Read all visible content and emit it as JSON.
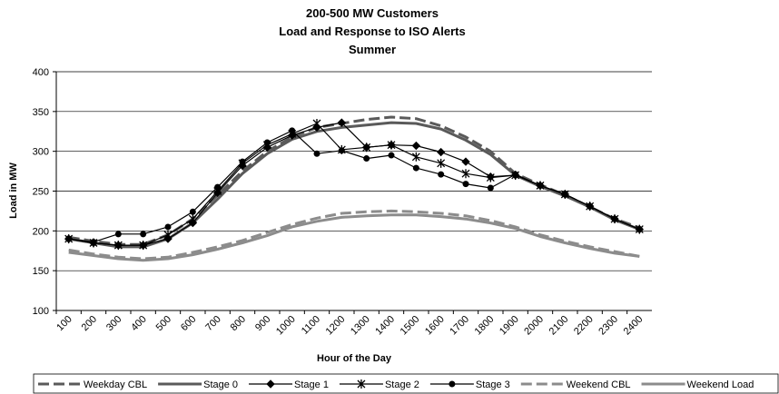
{
  "chart_data": {
    "type": "line",
    "title": [
      "200-500 MW Customers",
      "Load and Response to ISO Alerts",
      "Summer"
    ],
    "x_label": "Hour of the Day",
    "y_label": "Load in MW",
    "categories": [
      "100",
      "200",
      "300",
      "400",
      "500",
      "600",
      "700",
      "800",
      "900",
      "1000",
      "1100",
      "1200",
      "1300",
      "1400",
      "1500",
      "1600",
      "1700",
      "1800",
      "1900",
      "2000",
      "2100",
      "2200",
      "2300",
      "2400"
    ],
    "ylim": [
      100,
      400
    ],
    "yticks": [
      100,
      150,
      200,
      250,
      300,
      350,
      400
    ],
    "grid": true,
    "legend": "bottom",
    "series": [
      {
        "name": "Weekday CBL",
        "color": "#5a5a5a",
        "width": 3,
        "dash": true,
        "marker": null,
        "values": [
          192,
          187,
          183,
          183,
          195,
          215,
          245,
          275,
          300,
          318,
          330,
          335,
          340,
          343,
          341,
          332,
          318,
          300,
          272,
          258,
          245,
          230,
          215,
          204
        ]
      },
      {
        "name": "Stage 0",
        "color": "#5a5a5a",
        "width": 3,
        "dash": false,
        "marker": null,
        "values": [
          190,
          185,
          180,
          180,
          190,
          210,
          240,
          272,
          297,
          315,
          325,
          330,
          333,
          336,
          335,
          328,
          314,
          296,
          270,
          256,
          244,
          230,
          214,
          202
        ]
      },
      {
        "name": "Stage 1",
        "color": "#000000",
        "width": 1.2,
        "dash": false,
        "marker": "diamond",
        "values": [
          190,
          185,
          182,
          182,
          190,
          210,
          248,
          282,
          305,
          320,
          330,
          336,
          305,
          308,
          307,
          299,
          287,
          268,
          270,
          257,
          246,
          231,
          215,
          202
        ]
      },
      {
        "name": "Stage 2",
        "color": "#000000",
        "width": 1.2,
        "dash": false,
        "marker": "asterisk",
        "values": [
          190,
          185,
          182,
          182,
          195,
          215,
          250,
          285,
          308,
          322,
          335,
          302,
          305,
          308,
          293,
          285,
          272,
          267,
          270,
          257,
          246,
          231,
          215,
          202
        ]
      },
      {
        "name": "Stage 3",
        "color": "#000000",
        "width": 1.2,
        "dash": false,
        "marker": "circle",
        "values": [
          190,
          186,
          196,
          196,
          205,
          224,
          255,
          287,
          311,
          326,
          297,
          301,
          291,
          295,
          279,
          271,
          259,
          254,
          271,
          257,
          246,
          231,
          215,
          202
        ]
      },
      {
        "name": "Weekend CBL",
        "color": "#8c8c8c",
        "width": 3,
        "dash": true,
        "marker": null,
        "values": [
          176,
          171,
          167,
          165,
          167,
          173,
          180,
          188,
          198,
          208,
          216,
          222,
          224,
          225,
          224,
          222,
          219,
          213,
          205,
          195,
          187,
          180,
          174,
          168
        ]
      },
      {
        "name": "Weekend Load",
        "color": "#8c8c8c",
        "width": 3,
        "dash": false,
        "marker": null,
        "values": [
          173,
          169,
          165,
          163,
          165,
          170,
          177,
          185,
          194,
          205,
          212,
          217,
          219,
          220,
          220,
          218,
          215,
          210,
          203,
          193,
          185,
          178,
          172,
          168
        ]
      }
    ]
  }
}
